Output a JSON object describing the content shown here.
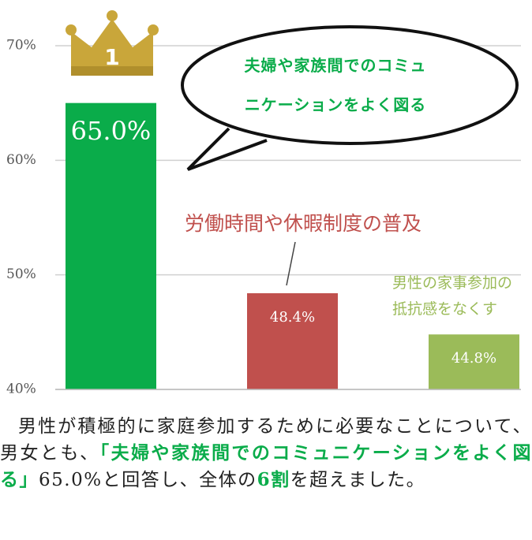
{
  "chart_data": {
    "type": "bar",
    "rank_badge": "1",
    "categories": [
      "夫婦や家族間でのコミュニケーションをよく図る",
      "労働時間や休暇制度の普及",
      "男性の家事参加の抵抗感をなくす"
    ],
    "values": [
      65.0,
      48.4,
      44.8
    ],
    "value_labels": [
      "65.0%",
      "48.4%",
      "44.8%"
    ],
    "colors": [
      "#0aac4a",
      "#c0504d",
      "#9bbb59"
    ],
    "ylim": [
      40,
      70
    ],
    "yticks": [
      {
        "value": 40,
        "label": "40%"
      },
      {
        "value": 50,
        "label": "50%"
      },
      {
        "value": 60,
        "label": "60%"
      },
      {
        "value": 70,
        "label": "70%"
      }
    ],
    "grid": true
  },
  "paragraph": [
    {
      "text": "男性が積極的に家庭参加するために必要なことについて、男女とも、",
      "color": "#222222"
    },
    {
      "text": "「夫婦や家族間でのコミュニケーションをよく図る」",
      "color": "#0aac4a"
    },
    {
      "text": "65.0%と回答し、全体の",
      "color": "#222222"
    },
    {
      "text": "6割",
      "color": "#0aac4a"
    },
    {
      "text": "を超えました。",
      "color": "#222222"
    }
  ]
}
